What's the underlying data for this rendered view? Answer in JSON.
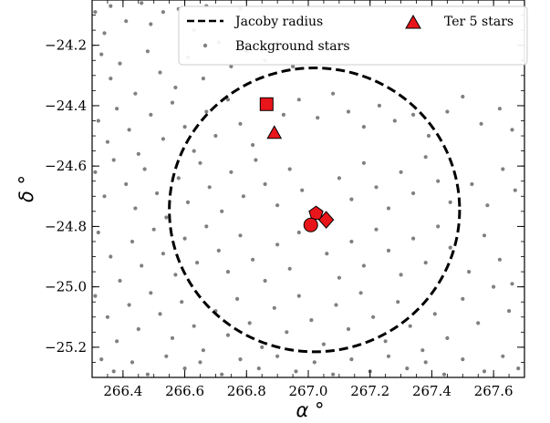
{
  "chart_data": {
    "type": "scatter",
    "xlabel": "α °",
    "ylabel": "δ °",
    "xlim": [
      266.3,
      267.7
    ],
    "ylim": [
      -25.3,
      -24.05
    ],
    "x_ticks": [
      266.4,
      266.6,
      266.8,
      267.0,
      267.2,
      267.4,
      267.6
    ],
    "x_tick_labels": [
      "266.4",
      "266.6",
      "266.8",
      "267.0",
      "267.2",
      "267.4",
      "267.6"
    ],
    "y_ticks": [
      -25.2,
      -25.0,
      -24.8,
      -24.6,
      -24.4,
      -24.2
    ],
    "y_tick_labels": [
      "−25.2",
      "−25.0",
      "−24.8",
      "−24.6",
      "−24.4",
      "−24.2"
    ],
    "grid": false,
    "legend": {
      "placement": "top-right",
      "entries": [
        {
          "label": "Jacoby radius",
          "marker": "dashed-line"
        },
        {
          "label": "Background stars",
          "marker": "gray-dot"
        },
        {
          "label": "Ter 5 stars",
          "marker": "red-triangle"
        }
      ]
    },
    "jacoby_radius": {
      "center": [
        267.02,
        -24.745
      ],
      "radius_deg": 0.47,
      "color": "#000000"
    },
    "ter5_stars": [
      {
        "shape": "square",
        "x": 266.865,
        "y": -24.395
      },
      {
        "shape": "triangle",
        "x": 266.89,
        "y": -24.49
      },
      {
        "shape": "pentagon",
        "x": 267.025,
        "y": -24.757
      },
      {
        "shape": "circle",
        "x": 267.008,
        "y": -24.795
      },
      {
        "shape": "diamond",
        "x": 267.058,
        "y": -24.778
      }
    ],
    "ter5_color": "#e8151a",
    "background_color": "#808080",
    "background_stars": [
      [
        266.31,
        -24.09
      ],
      [
        266.34,
        -24.16
      ],
      [
        266.36,
        -24.07
      ],
      [
        266.41,
        -24.12
      ],
      [
        266.46,
        -24.06
      ],
      [
        266.49,
        -24.13
      ],
      [
        266.53,
        -24.09
      ],
      [
        266.58,
        -24.08
      ],
      [
        266.63,
        -24.15
      ],
      [
        266.67,
        -24.07
      ],
      [
        266.72,
        -24.12
      ],
      [
        266.78,
        -24.08
      ],
      [
        266.84,
        -24.13
      ],
      [
        266.33,
        -24.23
      ],
      [
        266.36,
        -24.31
      ],
      [
        266.39,
        -24.26
      ],
      [
        266.44,
        -24.36
      ],
      [
        266.48,
        -24.22
      ],
      [
        266.52,
        -24.29
      ],
      [
        266.57,
        -24.34
      ],
      [
        266.61,
        -24.24
      ],
      [
        266.66,
        -24.31
      ],
      [
        266.71,
        -24.19
      ],
      [
        266.75,
        -24.27
      ],
      [
        266.8,
        -24.22
      ],
      [
        266.86,
        -24.25
      ],
      [
        266.9,
        -24.19
      ],
      [
        266.95,
        -24.27
      ],
      [
        266.32,
        -24.45
      ],
      [
        266.35,
        -24.52
      ],
      [
        266.38,
        -24.41
      ],
      [
        266.42,
        -24.48
      ],
      [
        266.45,
        -24.56
      ],
      [
        266.49,
        -24.43
      ],
      [
        266.53,
        -24.51
      ],
      [
        266.56,
        -24.39
      ],
      [
        266.6,
        -24.47
      ],
      [
        266.63,
        -24.55
      ],
      [
        266.67,
        -24.42
      ],
      [
        266.7,
        -24.5
      ],
      [
        266.74,
        -24.38
      ],
      [
        266.78,
        -24.46
      ],
      [
        266.82,
        -24.53
      ],
      [
        266.92,
        -24.43
      ],
      [
        266.97,
        -24.38
      ],
      [
        267.03,
        -24.44
      ],
      [
        267.08,
        -24.36
      ],
      [
        267.13,
        -24.42
      ],
      [
        267.18,
        -24.47
      ],
      [
        267.23,
        -24.4
      ],
      [
        267.28,
        -24.45
      ],
      [
        267.34,
        -24.43
      ],
      [
        267.39,
        -24.5
      ],
      [
        267.45,
        -24.42
      ],
      [
        267.5,
        -24.37
      ],
      [
        267.56,
        -24.46
      ],
      [
        267.62,
        -24.41
      ],
      [
        267.66,
        -24.48
      ],
      [
        266.31,
        -24.62
      ],
      [
        266.34,
        -24.7
      ],
      [
        266.37,
        -24.58
      ],
      [
        266.41,
        -24.66
      ],
      [
        266.44,
        -24.74
      ],
      [
        266.47,
        -24.61
      ],
      [
        266.51,
        -24.69
      ],
      [
        266.54,
        -24.77
      ],
      [
        266.58,
        -24.64
      ],
      [
        266.61,
        -24.72
      ],
      [
        266.65,
        -24.59
      ],
      [
        266.68,
        -24.67
      ],
      [
        266.72,
        -24.75
      ],
      [
        266.75,
        -24.62
      ],
      [
        266.79,
        -24.7
      ],
      [
        266.83,
        -24.58
      ],
      [
        266.86,
        -24.66
      ],
      [
        266.9,
        -24.73
      ],
      [
        266.94,
        -24.61
      ],
      [
        266.98,
        -24.68
      ],
      [
        267.1,
        -24.64
      ],
      [
        267.14,
        -24.71
      ],
      [
        267.18,
        -24.59
      ],
      [
        267.22,
        -24.67
      ],
      [
        267.26,
        -24.74
      ],
      [
        267.3,
        -24.62
      ],
      [
        267.34,
        -24.69
      ],
      [
        267.38,
        -24.57
      ],
      [
        267.42,
        -24.65
      ],
      [
        267.46,
        -24.72
      ],
      [
        267.53,
        -24.66
      ],
      [
        267.58,
        -24.73
      ],
      [
        267.63,
        -24.61
      ],
      [
        267.67,
        -24.68
      ],
      [
        266.32,
        -24.82
      ],
      [
        266.36,
        -24.9
      ],
      [
        266.39,
        -24.98
      ],
      [
        266.43,
        -24.85
      ],
      [
        266.46,
        -24.93
      ],
      [
        266.5,
        -24.81
      ],
      [
        266.53,
        -24.89
      ],
      [
        266.57,
        -24.96
      ],
      [
        266.6,
        -24.84
      ],
      [
        266.64,
        -24.92
      ],
      [
        266.67,
        -24.8
      ],
      [
        266.71,
        -24.88
      ],
      [
        266.74,
        -24.95
      ],
      [
        266.78,
        -24.83
      ],
      [
        266.82,
        -24.91
      ],
      [
        266.86,
        -24.98
      ],
      [
        266.9,
        -24.86
      ],
      [
        266.94,
        -24.94
      ],
      [
        266.97,
        -24.82
      ],
      [
        267.06,
        -24.89
      ],
      [
        267.1,
        -24.97
      ],
      [
        267.14,
        -24.85
      ],
      [
        267.18,
        -24.93
      ],
      [
        267.22,
        -24.81
      ],
      [
        267.26,
        -24.88
      ],
      [
        267.3,
        -24.96
      ],
      [
        267.34,
        -24.84
      ],
      [
        267.38,
        -24.92
      ],
      [
        267.42,
        -24.8
      ],
      [
        267.46,
        -24.87
      ],
      [
        267.52,
        -24.95
      ],
      [
        267.57,
        -24.83
      ],
      [
        267.62,
        -24.91
      ],
      [
        267.66,
        -24.99
      ],
      [
        266.31,
        -25.03
      ],
      [
        266.35,
        -25.1
      ],
      [
        266.38,
        -25.18
      ],
      [
        266.42,
        -25.06
      ],
      [
        266.45,
        -25.14
      ],
      [
        266.49,
        -25.02
      ],
      [
        266.52,
        -25.09
      ],
      [
        266.56,
        -25.17
      ],
      [
        266.59,
        -25.05
      ],
      [
        266.63,
        -25.13
      ],
      [
        266.66,
        -25.21
      ],
      [
        266.7,
        -25.08
      ],
      [
        266.74,
        -25.16
      ],
      [
        266.77,
        -25.04
      ],
      [
        266.81,
        -25.12
      ],
      [
        266.85,
        -25.2
      ],
      [
        266.89,
        -25.07
      ],
      [
        266.93,
        -25.15
      ],
      [
        266.97,
        -25.03
      ],
      [
        267.01,
        -25.11
      ],
      [
        267.05,
        -25.19
      ],
      [
        267.09,
        -25.06
      ],
      [
        267.13,
        -25.14
      ],
      [
        267.17,
        -25.02
      ],
      [
        267.21,
        -25.1
      ],
      [
        267.25,
        -25.18
      ],
      [
        267.29,
        -25.05
      ],
      [
        267.33,
        -25.13
      ],
      [
        267.37,
        -25.21
      ],
      [
        267.41,
        -25.09
      ],
      [
        267.45,
        -25.17
      ],
      [
        267.5,
        -25.04
      ],
      [
        267.55,
        -25.12
      ],
      [
        267.6,
        -25.0
      ],
      [
        267.65,
        -25.08
      ],
      [
        266.33,
        -25.24
      ],
      [
        266.37,
        -25.28
      ],
      [
        266.43,
        -25.25
      ],
      [
        266.48,
        -25.29
      ],
      [
        266.54,
        -25.23
      ],
      [
        266.6,
        -25.27
      ],
      [
        266.65,
        -25.25
      ],
      [
        266.72,
        -25.29
      ],
      [
        266.78,
        -25.24
      ],
      [
        266.84,
        -25.27
      ],
      [
        266.9,
        -25.23
      ],
      [
        266.96,
        -25.28
      ],
      [
        267.02,
        -25.25
      ],
      [
        267.08,
        -25.29
      ],
      [
        267.14,
        -25.24
      ],
      [
        267.2,
        -25.28
      ],
      [
        267.26,
        -25.23
      ],
      [
        267.32,
        -25.27
      ],
      [
        267.38,
        -25.25
      ],
      [
        267.44,
        -25.29
      ],
      [
        267.5,
        -25.24
      ],
      [
        267.57,
        -25.28
      ],
      [
        267.63,
        -25.23
      ],
      [
        267.68,
        -25.27
      ]
    ]
  }
}
